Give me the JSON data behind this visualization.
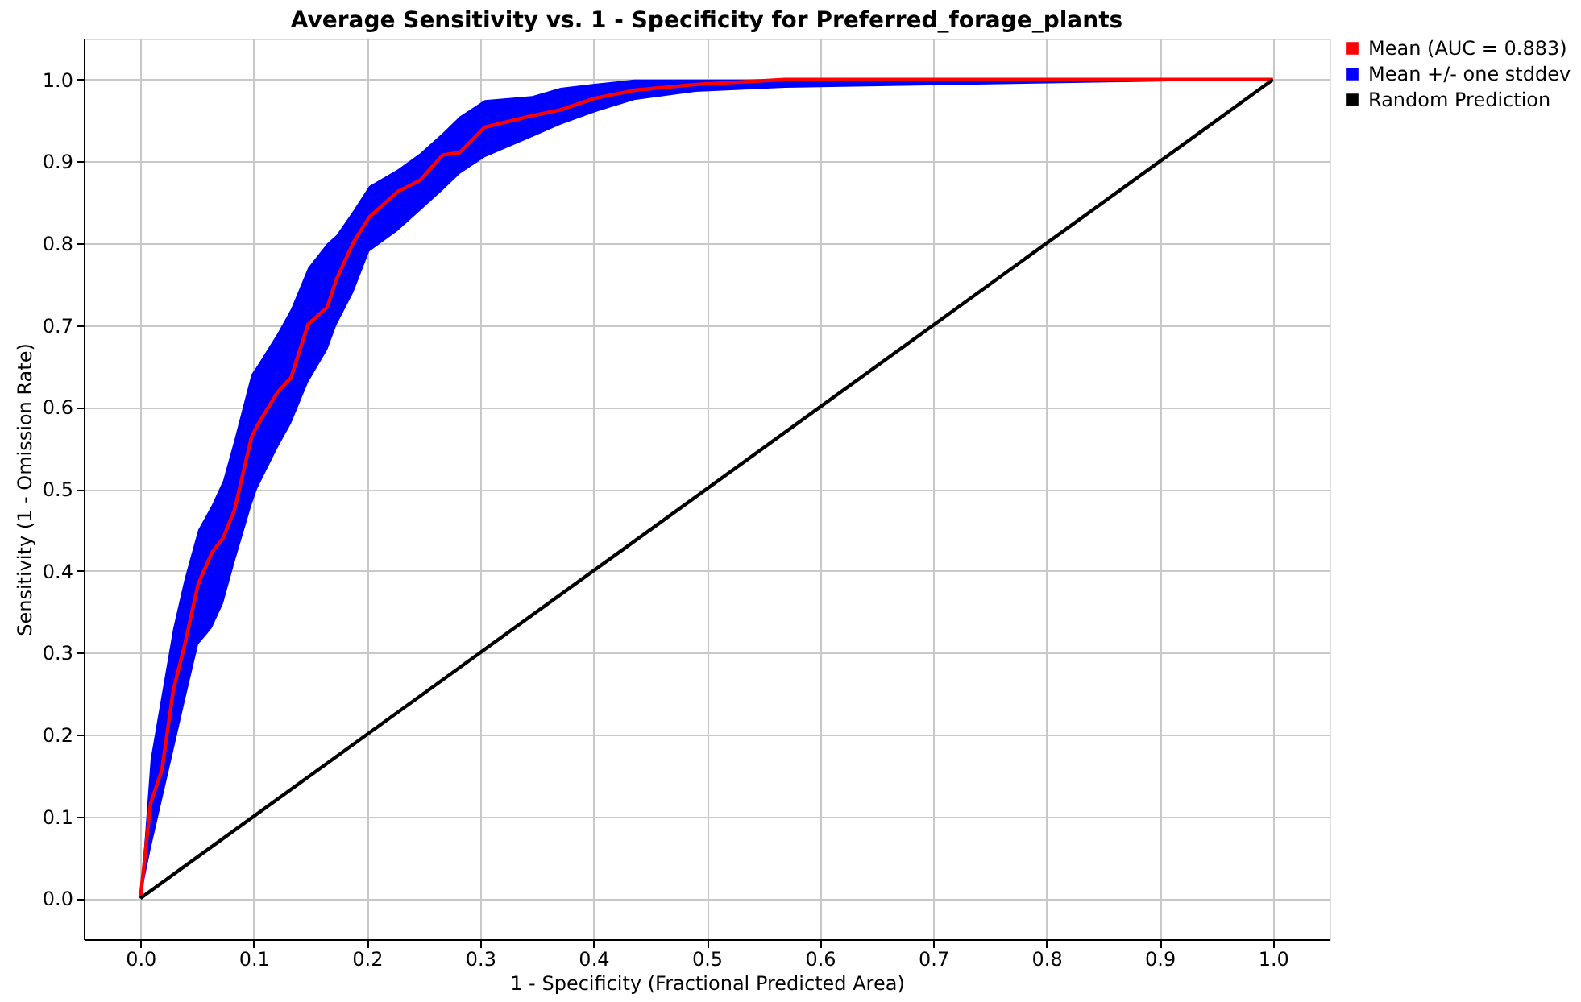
{
  "chart_data": {
    "type": "line",
    "title": "Average Sensitivity vs. 1 - Specificity for Preferred_forage_plants",
    "xlabel": "1 - Specificity (Fractional Predicted Area)",
    "ylabel": "Sensitivity (1 - Omission Rate)",
    "xlim": [
      -0.05,
      1.05
    ],
    "ylim": [
      -0.05,
      1.05
    ],
    "xticks": [
      {
        "value": 0,
        "label": "0.0"
      },
      {
        "value": 0.1,
        "label": "0.1"
      },
      {
        "value": 0.2,
        "label": "0.2"
      },
      {
        "value": 0.3,
        "label": "0.3"
      },
      {
        "value": 0.4,
        "label": "0.4"
      },
      {
        "value": 0.5,
        "label": "0.5"
      },
      {
        "value": 0.6,
        "label": "0.6"
      },
      {
        "value": 0.7,
        "label": "0.7"
      },
      {
        "value": 0.8,
        "label": "0.8"
      },
      {
        "value": 0.9,
        "label": "0.9"
      },
      {
        "value": 1,
        "label": "1.0"
      }
    ],
    "yticks": [
      {
        "value": 0,
        "label": "0.0"
      },
      {
        "value": 0.1,
        "label": "0.1"
      },
      {
        "value": 0.2,
        "label": "0.2"
      },
      {
        "value": 0.3,
        "label": "0.3"
      },
      {
        "value": 0.4,
        "label": "0.4"
      },
      {
        "value": 0.5,
        "label": "0.5"
      },
      {
        "value": 0.6,
        "label": "0.6"
      },
      {
        "value": 0.7,
        "label": "0.7"
      },
      {
        "value": 0.8,
        "label": "0.8"
      },
      {
        "value": 0.9,
        "label": "0.9"
      },
      {
        "value": 1,
        "label": "1.0"
      }
    ],
    "grid": true,
    "legend": "top right",
    "marker": "none",
    "line_style": "solid",
    "series": [
      {
        "name": "Mean (AUC = 0.883)",
        "color": "#ff0000",
        "x": [
          0,
          0.009,
          0.019,
          0.029,
          0.039,
          0.051,
          0.063,
          0.073,
          0.083,
          0.098,
          0.103,
          0.121,
          0.133,
          0.148,
          0.165,
          0.173,
          0.188,
          0.202,
          0.227,
          0.247,
          0.267,
          0.282,
          0.304,
          0.346,
          0.371,
          0.401,
          0.436,
          0.49,
          0.569,
          1
        ],
        "values": [
          0,
          0.116,
          0.157,
          0.254,
          0.309,
          0.384,
          0.422,
          0.44,
          0.474,
          0.563,
          0.577,
          0.618,
          0.636,
          0.701,
          0.722,
          0.756,
          0.801,
          0.832,
          0.863,
          0.877,
          0.908,
          0.911,
          0.942,
          0.956,
          0.963,
          0.977,
          0.987,
          0.994,
          1,
          1
        ],
        "lower": [
          0,
          0.06,
          0.12,
          0.18,
          0.24,
          0.31,
          0.33,
          0.36,
          0.41,
          0.48,
          0.5,
          0.55,
          0.58,
          0.63,
          0.67,
          0.7,
          0.74,
          0.79,
          0.815,
          0.84,
          0.865,
          0.885,
          0.905,
          0.93,
          0.945,
          0.96,
          0.975,
          0.985,
          0.99,
          1
        ],
        "upper": [
          0,
          0.17,
          0.25,
          0.33,
          0.39,
          0.45,
          0.48,
          0.51,
          0.56,
          0.64,
          0.65,
          0.69,
          0.72,
          0.77,
          0.8,
          0.81,
          0.84,
          0.87,
          0.89,
          0.91,
          0.935,
          0.955,
          0.975,
          0.98,
          0.99,
          0.995,
          1,
          1,
          1,
          1
        ]
      },
      {
        "name": "Mean +/- one stddev",
        "type": "area",
        "color": "#0000ff"
      },
      {
        "name": "Random Prediction",
        "color": "#000000",
        "x": [
          0,
          1
        ],
        "values": [
          0,
          1
        ]
      }
    ]
  }
}
